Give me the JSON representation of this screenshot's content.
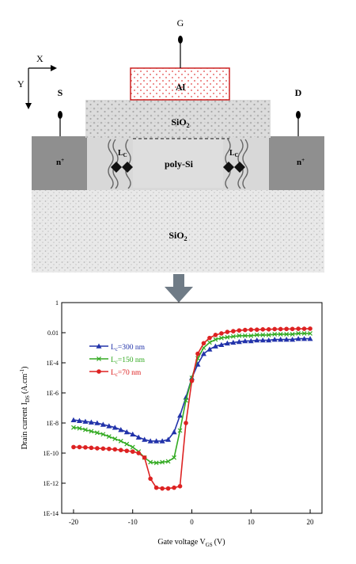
{
  "device": {
    "gate_label": "G",
    "source_label": "S",
    "drain_label": "D",
    "axis_x": "X",
    "axis_y": "Y",
    "gate_metal": "Al",
    "gate_oxide_label": "SiO",
    "gate_oxide_sub": "2",
    "channel_label": "poly-Si",
    "source_region": "n",
    "drain_region": "n",
    "doping_sup": "+",
    "substrate_label": "SiO",
    "substrate_sub": "2",
    "lc_label": "L",
    "lc_sub": "C",
    "colors": {
      "gate_outline": "#cc2222",
      "gate_fill_dots": "#e44444",
      "contact_gray": "#8f8f8f",
      "channel_gray": "#d8d8d8"
    }
  },
  "arrow": {
    "color": "#6f7b86",
    "icon": "arrow-down-icon"
  },
  "chart_data": {
    "type": "line",
    "xlabel_main": "Gate voltage V",
    "xlabel_sub": "GS",
    "xlabel_unit": "(V)",
    "ylabel_main": "Drain current I",
    "ylabel_sub": "DS",
    "ylabel_unit": "(A.cm",
    "ylabel_sup": "-1",
    "ylabel_close": ")",
    "xlim": [
      -22,
      22
    ],
    "ylim_log10": [
      -14,
      0
    ],
    "log_y": true,
    "grid": false,
    "legend_position": "top-left",
    "x_ticks": [
      -20,
      -10,
      0,
      10,
      20
    ],
    "x_tick_labels": [
      "-20",
      "-10",
      "0",
      "10",
      "20"
    ],
    "y_ticks_log10": [
      0,
      -2,
      -4,
      -6,
      -8,
      -10,
      -12,
      -14
    ],
    "y_tick_labels": [
      "1",
      "0.01",
      "1E-4",
      "1E-6",
      "1E-8",
      "1E-10",
      "1E-12",
      "1E-14"
    ],
    "x": [
      -20,
      -19,
      -18,
      -17,
      -16,
      -15,
      -14,
      -13,
      -12,
      -11,
      -10,
      -9,
      -8,
      -7,
      -6,
      -5,
      -4,
      -3,
      -2,
      -1,
      0,
      1,
      2,
      3,
      4,
      5,
      6,
      7,
      8,
      9,
      10,
      11,
      12,
      13,
      14,
      15,
      16,
      17,
      18,
      19,
      20
    ],
    "series": [
      {
        "name": "L",
        "name_sub": "c",
        "name_rest": "=300 nm",
        "color": "#2233aa",
        "marker": "triangle",
        "values_log10": [
          -7.8,
          -7.85,
          -7.9,
          -7.95,
          -8.0,
          -8.1,
          -8.2,
          -8.3,
          -8.45,
          -8.6,
          -8.75,
          -8.95,
          -9.1,
          -9.2,
          -9.2,
          -9.2,
          -9.1,
          -8.6,
          -7.5,
          -6.3,
          -5.0,
          -4.1,
          -3.4,
          -3.1,
          -2.9,
          -2.8,
          -2.7,
          -2.65,
          -2.6,
          -2.55,
          -2.55,
          -2.5,
          -2.5,
          -2.5,
          -2.45,
          -2.45,
          -2.45,
          -2.45,
          -2.4,
          -2.4,
          -2.4
        ]
      },
      {
        "name": "L",
        "name_sub": "c",
        "name_rest": "=150 nm",
        "color": "#33aa22",
        "marker": "cross",
        "values_log10": [
          -8.3,
          -8.35,
          -8.45,
          -8.55,
          -8.65,
          -8.75,
          -8.9,
          -9.05,
          -9.2,
          -9.4,
          -9.6,
          -9.9,
          -10.3,
          -10.6,
          -10.65,
          -10.6,
          -10.55,
          -10.3,
          -8.5,
          -6.5,
          -5.0,
          -3.7,
          -3.0,
          -2.65,
          -2.45,
          -2.35,
          -2.3,
          -2.25,
          -2.2,
          -2.2,
          -2.2,
          -2.15,
          -2.15,
          -2.15,
          -2.1,
          -2.1,
          -2.1,
          -2.1,
          -2.05,
          -2.05,
          -2.05
        ]
      },
      {
        "name": "L",
        "name_sub": "c",
        "name_rest": "=70 nm",
        "color": "#dd2222",
        "marker": "circle",
        "values_log10": [
          -9.6,
          -9.6,
          -9.62,
          -9.65,
          -9.68,
          -9.7,
          -9.72,
          -9.75,
          -9.8,
          -9.85,
          -9.9,
          -10.0,
          -10.3,
          -11.7,
          -12.3,
          -12.35,
          -12.35,
          -12.3,
          -12.2,
          -8.0,
          -5.2,
          -3.4,
          -2.7,
          -2.35,
          -2.15,
          -2.05,
          -1.95,
          -1.9,
          -1.85,
          -1.82,
          -1.8,
          -1.8,
          -1.78,
          -1.78,
          -1.76,
          -1.76,
          -1.75,
          -1.75,
          -1.74,
          -1.74,
          -1.73
        ]
      }
    ]
  }
}
